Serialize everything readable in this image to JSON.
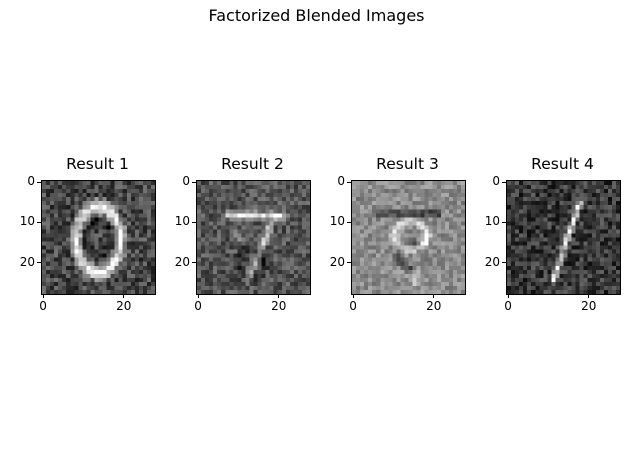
{
  "figure": {
    "title": "Factorized Blended Images"
  },
  "chart_data": [
    {
      "type": "heatmap",
      "title": "Result 1",
      "colormap": "gray",
      "image_size": [
        28,
        28
      ],
      "depicts": "blurred digit 0",
      "xticks": [
        0,
        20
      ],
      "yticks": [
        0,
        10,
        20
      ],
      "xlim": [
        -0.5,
        27.5
      ],
      "ylim": [
        27.5,
        -0.5
      ],
      "background_level": 0.28
    },
    {
      "type": "heatmap",
      "title": "Result 2",
      "colormap": "gray",
      "image_size": [
        28,
        28
      ],
      "depicts": "faint digit 7 over a 9",
      "xticks": [
        0,
        20
      ],
      "yticks": [
        0,
        10,
        20
      ],
      "xlim": [
        -0.5,
        27.5
      ],
      "ylim": [
        27.5,
        -0.5
      ],
      "background_level": 0.33
    },
    {
      "type": "heatmap",
      "title": "Result 3",
      "colormap": "gray",
      "image_size": [
        28,
        28
      ],
      "depicts": "digit 9 with dark bar",
      "xticks": [
        0,
        20
      ],
      "yticks": [
        0,
        10,
        20
      ],
      "xlim": [
        -0.5,
        27.5
      ],
      "ylim": [
        27.5,
        -0.5
      ],
      "background_level": 0.55
    },
    {
      "type": "heatmap",
      "title": "Result 4",
      "colormap": "gray",
      "image_size": [
        28,
        28
      ],
      "depicts": "digit 1 stroke",
      "xticks": [
        0,
        20
      ],
      "yticks": [
        0,
        10,
        20
      ],
      "xlim": [
        -0.5,
        27.5
      ],
      "ylim": [
        27.5,
        -0.5
      ],
      "background_level": 0.22
    }
  ]
}
